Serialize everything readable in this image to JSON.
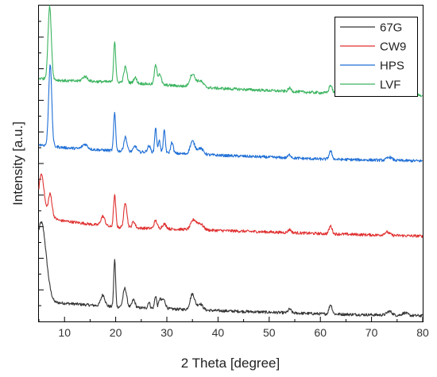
{
  "chart_data": {
    "type": "line",
    "title": "",
    "xlabel": "2 Theta [degree]",
    "ylabel": "Intensity [a.u.]",
    "xlim": [
      5,
      80
    ],
    "ylim": [
      0,
      100
    ],
    "x_ticks": [
      10,
      20,
      30,
      40,
      50,
      60,
      70,
      80
    ],
    "y_ticks_labeled": false,
    "grid": false,
    "legend_position": "top-right",
    "series": [
      {
        "name": "67G",
        "color": "#333333",
        "baseline": [
          [
            5,
            10
          ],
          [
            8,
            6
          ],
          [
            20,
            4.6
          ],
          [
            40,
            3.4
          ],
          [
            60,
            2.4
          ],
          [
            80,
            1.8
          ]
        ],
        "peaks": [
          [
            5.5,
            22,
            0.9
          ],
          [
            17.5,
            3.5,
            0.4
          ],
          [
            19.8,
            15,
            0.18
          ],
          [
            21.8,
            6,
            0.35
          ],
          [
            23.5,
            2.5,
            0.3
          ],
          [
            26.5,
            2,
            0.2
          ],
          [
            27.8,
            4,
            0.2
          ],
          [
            28.6,
            2.5,
            0.2
          ],
          [
            29.3,
            3,
            0.4
          ],
          [
            35,
            5,
            0.45
          ],
          [
            36.5,
            2,
            0.5
          ],
          [
            54,
            1.2,
            0.3
          ],
          [
            62,
            3,
            0.3
          ],
          [
            73.5,
            1.2,
            0.5
          ],
          [
            76.5,
            0.8,
            0.5
          ]
        ]
      },
      {
        "name": "CW9",
        "color": "#e03030",
        "baseline": [
          [
            5,
            35
          ],
          [
            9,
            32
          ],
          [
            20,
            29.8
          ],
          [
            40,
            28.8
          ],
          [
            60,
            27.8
          ],
          [
            80,
            27
          ]
        ],
        "peaks": [
          [
            5.5,
            12,
            0.5
          ],
          [
            7.2,
            7,
            0.35
          ],
          [
            17.5,
            3,
            0.4
          ],
          [
            19.8,
            10,
            0.22
          ],
          [
            21.9,
            8,
            0.3
          ],
          [
            23.5,
            2,
            0.3
          ],
          [
            27.8,
            2.5,
            0.3
          ],
          [
            29.5,
            1.5,
            0.4
          ],
          [
            35.2,
            3,
            0.5
          ],
          [
            36.5,
            2,
            0.6
          ],
          [
            54,
            1,
            0.3
          ],
          [
            62,
            2.5,
            0.3
          ],
          [
            73,
            1,
            0.5
          ]
        ]
      },
      {
        "name": "HPS",
        "color": "#1f6fd6",
        "baseline": [
          [
            5,
            56
          ],
          [
            10,
            55
          ],
          [
            20,
            54
          ],
          [
            40,
            52.6
          ],
          [
            60,
            51.4
          ],
          [
            80,
            50.8
          ]
        ],
        "peaks": [
          [
            7.2,
            26,
            0.3
          ],
          [
            14,
            1.5,
            0.5
          ],
          [
            19.8,
            12,
            0.2
          ],
          [
            21.9,
            4.5,
            0.3
          ],
          [
            23.8,
            1.8,
            0.3
          ],
          [
            26.5,
            2,
            0.3
          ],
          [
            27.8,
            8,
            0.18
          ],
          [
            28.5,
            4,
            0.2
          ],
          [
            29.5,
            7,
            0.2
          ],
          [
            31,
            3.5,
            0.25
          ],
          [
            35,
            4,
            0.45
          ],
          [
            36.5,
            2,
            0.6
          ],
          [
            54,
            1,
            0.3
          ],
          [
            62,
            2.5,
            0.3
          ],
          [
            73.5,
            1,
            0.5
          ]
        ]
      },
      {
        "name": "LVF",
        "color": "#3cb460",
        "baseline": [
          [
            5,
            77
          ],
          [
            10,
            76.2
          ],
          [
            20,
            75.8
          ],
          [
            40,
            73.8
          ],
          [
            60,
            72.4
          ],
          [
            80,
            71.6
          ]
        ],
        "peaks": [
          [
            7.1,
            23,
            0.32
          ],
          [
            14,
            1.5,
            0.5
          ],
          [
            19.8,
            13,
            0.2
          ],
          [
            21.9,
            5,
            0.3
          ],
          [
            23.8,
            1.8,
            0.3
          ],
          [
            27.8,
            6,
            0.25
          ],
          [
            28.6,
            3.5,
            0.3
          ],
          [
            35,
            4,
            0.5
          ],
          [
            36.5,
            2,
            0.6
          ],
          [
            54,
            1,
            0.3
          ],
          [
            62,
            2.5,
            0.3
          ],
          [
            73.5,
            1,
            0.5
          ]
        ]
      }
    ]
  }
}
